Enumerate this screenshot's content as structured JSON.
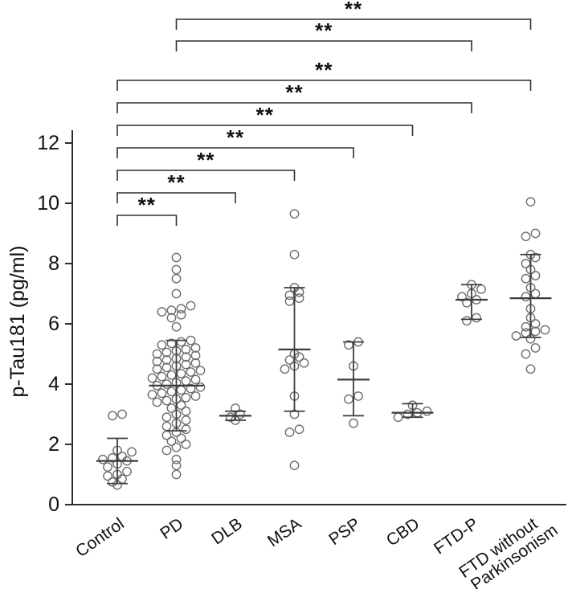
{
  "chart_data": {
    "type": "scatter",
    "title": "",
    "ylabel": "p-Tau181 (pg/ml)",
    "ylim": [
      0,
      12
    ],
    "yticks": [
      0,
      2,
      4,
      6,
      8,
      10,
      12
    ],
    "grid": false,
    "legend": "none",
    "marker": "open-circle",
    "error_bar_style": "mean-with-sd-caps",
    "groups": [
      {
        "label": "Control",
        "label_lines": [
          "Control"
        ],
        "values": [
          3.0,
          2.95,
          1.8,
          1.75,
          1.6,
          1.55,
          1.5,
          1.45,
          1.35,
          1.25,
          1.1,
          1.0,
          0.95,
          0.85,
          0.75,
          0.65
        ],
        "mean": 1.45,
        "lo": 0.7,
        "hi": 2.2
      },
      {
        "label": "PD",
        "label_lines": [
          "PD"
        ],
        "values": [
          8.2,
          7.8,
          7.5,
          7.0,
          6.6,
          6.5,
          6.45,
          6.4,
          6.3,
          6.2,
          5.9,
          5.45,
          5.4,
          5.35,
          5.3,
          5.2,
          5.15,
          5.1,
          5.05,
          5.0,
          4.95,
          4.9,
          4.85,
          4.8,
          4.75,
          4.7,
          4.65,
          4.6,
          4.55,
          4.5,
          4.45,
          4.4,
          4.35,
          4.3,
          4.25,
          4.2,
          4.15,
          4.1,
          4.05,
          4.0,
          3.95,
          3.9,
          3.85,
          3.8,
          3.75,
          3.7,
          3.65,
          3.6,
          3.55,
          3.5,
          3.45,
          3.4,
          3.3,
          3.2,
          3.1,
          3.0,
          2.9,
          2.8,
          2.7,
          2.6,
          2.5,
          2.4,
          2.3,
          2.2,
          2.1,
          2.0,
          1.9,
          1.8,
          1.5,
          1.3,
          1.0
        ],
        "mean": 3.95,
        "lo": 2.45,
        "hi": 5.45
      },
      {
        "label": "DLB",
        "label_lines": [
          "DLB"
        ],
        "values": [
          3.2,
          3.0,
          2.9,
          2.8
        ],
        "mean": 2.95,
        "lo": 2.8,
        "hi": 3.1
      },
      {
        "label": "MSA",
        "label_lines": [
          "MSA"
        ],
        "values": [
          9.65,
          8.3,
          7.2,
          7.05,
          6.95,
          6.85,
          6.75,
          5.0,
          4.9,
          4.8,
          4.7,
          4.6,
          4.5,
          3.6,
          3.0,
          2.5,
          2.4,
          1.3
        ],
        "mean": 5.15,
        "lo": 3.1,
        "hi": 7.2
      },
      {
        "label": "PSP",
        "label_lines": [
          "PSP"
        ],
        "values": [
          5.4,
          5.3,
          4.6,
          3.6,
          3.5,
          2.7
        ],
        "mean": 4.15,
        "lo": 2.95,
        "hi": 5.4
      },
      {
        "label": "CBD",
        "label_lines": [
          "CBD"
        ],
        "values": [
          3.3,
          3.1,
          3.05,
          3.0,
          2.9
        ],
        "mean": 3.05,
        "lo": 2.9,
        "hi": 3.35
      },
      {
        "label": "FTD-P",
        "label_lines": [
          "FTD-P"
        ],
        "values": [
          7.3,
          7.15,
          7.0,
          6.9,
          6.8,
          6.7,
          6.2,
          6.1
        ],
        "mean": 6.8,
        "lo": 6.15,
        "hi": 7.3
      },
      {
        "label": "FTD without Parkinsonism",
        "label_lines": [
          "FTD without",
          "Parkinsonism"
        ],
        "values": [
          10.05,
          9.0,
          8.9,
          8.3,
          8.2,
          8.0,
          7.8,
          7.6,
          7.5,
          7.2,
          7.0,
          6.9,
          6.5,
          6.2,
          6.0,
          5.9,
          5.8,
          5.75,
          5.7,
          5.6,
          5.5,
          5.2,
          5.0,
          4.5
        ],
        "mean": 6.85,
        "lo": 5.55,
        "hi": 8.3
      }
    ],
    "significance": [
      {
        "from": "PD",
        "to": "FTD without Parkinsonism",
        "label": "**",
        "y": 24
      },
      {
        "from": "PD",
        "to": "FTD-P",
        "label": "**",
        "y": 51
      },
      {
        "from": "Control",
        "to": "FTD without Parkinsonism",
        "label": "**",
        "y": 100
      },
      {
        "from": "Control",
        "to": "FTD-P",
        "label": "**",
        "y": 128
      },
      {
        "from": "Control",
        "to": "CBD",
        "label": "**",
        "y": 156
      },
      {
        "from": "Control",
        "to": "PSP",
        "label": "**",
        "y": 184
      },
      {
        "from": "Control",
        "to": "MSA",
        "label": "**",
        "y": 212
      },
      {
        "from": "Control",
        "to": "DLB",
        "label": "**",
        "y": 240
      },
      {
        "from": "Control",
        "to": "PD",
        "label": "**",
        "y": 268
      }
    ]
  }
}
